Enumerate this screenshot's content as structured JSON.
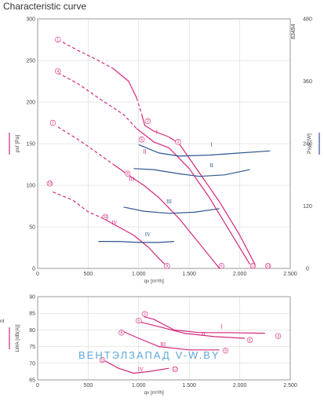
{
  "page": {
    "title": "Characteristic curve",
    "code": "83494",
    "watermark": {
      "part1": "ВЕНТЭЛ",
      "part2": "ЗАПАД",
      "part3": "V-W.BY",
      "color1": "#5fa8d8",
      "color2": "#5fa8d8",
      "color3": "#5fa8d8"
    },
    "cut_label": "nt"
  },
  "colors": {
    "pressure": "#d4287c",
    "power": "#2e5690",
    "grid": "#d0d0d0"
  },
  "chart_data": [
    {
      "type": "line",
      "name": "pressure_power",
      "xlabel": "qv [m³/h]",
      "ylabel": "psf [Pa]",
      "y2label": "Psys [W]",
      "xlim": [
        0,
        2500
      ],
      "ylim": [
        0,
        300
      ],
      "y2lim": [
        0,
        480
      ],
      "x_ticks": [
        0,
        500,
        1000,
        1500,
        2000,
        2500
      ],
      "x_tick_labels": [
        "0",
        "500",
        "1.000",
        "1.500",
        "2.000",
        "2.500"
      ],
      "y_ticks": [
        0,
        50,
        100,
        150,
        200,
        250,
        300
      ],
      "y2_ticks": [
        0,
        120,
        240,
        360,
        480
      ],
      "series": [
        {
          "axis": "y",
          "style": "dashed",
          "points": [
            [
              200,
              275
            ],
            [
              400,
              262
            ],
            [
              600,
              250
            ],
            [
              750,
              240
            ]
          ]
        },
        {
          "axis": "y",
          "style": "solid",
          "points": [
            [
              750,
              240
            ],
            [
              900,
              225
            ],
            [
              980,
              205
            ]
          ]
        },
        {
          "axis": "y",
          "style": "dashed",
          "points": [
            [
              980,
              205
            ],
            [
              1030,
              185
            ]
          ]
        },
        {
          "axis": "y",
          "style": "solid",
          "points": [
            [
              1030,
              185
            ],
            [
              1060,
              172
            ],
            [
              1150,
              165
            ],
            [
              1300,
              158
            ],
            [
              1400,
              150
            ],
            [
              1600,
              115
            ],
            [
              1800,
              80
            ],
            [
              2000,
              40
            ],
            [
              2150,
              5
            ]
          ]
        },
        {
          "axis": "y",
          "style": "dashed",
          "points": [
            [
              200,
              235
            ],
            [
              400,
              222
            ],
            [
              600,
              205
            ],
            [
              850,
              185
            ],
            [
              980,
              168
            ]
          ]
        },
        {
          "axis": "y",
          "style": "solid",
          "points": [
            [
              980,
              168
            ],
            [
              1150,
              152
            ],
            [
              1300,
              145
            ],
            [
              1500,
              120
            ],
            [
              1700,
              85
            ],
            [
              1900,
              45
            ],
            [
              2100,
              5
            ]
          ]
        },
        {
          "axis": "y",
          "style": "dashed",
          "points": [
            [
              200,
              170
            ],
            [
              400,
              155
            ],
            [
              600,
              138
            ],
            [
              750,
              125
            ]
          ]
        },
        {
          "axis": "y",
          "style": "solid",
          "points": [
            [
              750,
              125
            ],
            [
              900,
              112
            ],
            [
              1050,
              100
            ],
            [
              1200,
              85
            ],
            [
              1400,
              60
            ],
            [
              1600,
              30
            ],
            [
              1800,
              0
            ]
          ]
        },
        {
          "axis": "y",
          "style": "dashed",
          "points": [
            [
              150,
              92
            ],
            [
              350,
              82
            ],
            [
              500,
              68
            ],
            [
              650,
              60
            ]
          ]
        },
        {
          "axis": "y",
          "style": "solid",
          "points": [
            [
              650,
              60
            ],
            [
              800,
              50
            ],
            [
              950,
              40
            ],
            [
              1100,
              25
            ],
            [
              1200,
              12
            ],
            [
              1300,
              0
            ]
          ]
        },
        {
          "axis": "y2",
          "style": "solid",
          "points": [
            [
              1000,
              238
            ],
            [
              1200,
              222
            ],
            [
              1400,
              216
            ],
            [
              1700,
              218
            ],
            [
              2000,
              222
            ],
            [
              2300,
              226
            ]
          ]
        },
        {
          "axis": "y2",
          "style": "solid",
          "points": [
            [
              950,
              192
            ],
            [
              1150,
              190
            ],
            [
              1400,
              182
            ],
            [
              1600,
              177
            ],
            [
              1850,
              180
            ],
            [
              2100,
              190
            ]
          ]
        },
        {
          "axis": "y2",
          "style": "solid",
          "points": [
            [
              850,
              118
            ],
            [
              1050,
              110
            ],
            [
              1300,
              106
            ],
            [
              1550,
              108
            ],
            [
              1800,
              115
            ]
          ]
        },
        {
          "axis": "y2",
          "style": "solid",
          "points": [
            [
              600,
              52
            ],
            [
              800,
              52
            ],
            [
              1000,
              50
            ],
            [
              1200,
              50
            ],
            [
              1350,
              52
            ]
          ]
        }
      ],
      "roman_labels": [
        {
          "text": "I",
          "x": 1180,
          "y": 162,
          "color": "#d4287c"
        },
        {
          "text": "II",
          "x": 1060,
          "y": 138,
          "color": "#d4287c"
        },
        {
          "text": "III",
          "x": 930,
          "y": 105,
          "color": "#d4287c"
        },
        {
          "text": "IV",
          "x": 760,
          "y": 53,
          "color": "#d4287c"
        },
        {
          "text": "I",
          "x": 1720,
          "y": 235,
          "axis": "y2",
          "color": "#2e5690"
        },
        {
          "text": "II",
          "x": 1720,
          "y": 195,
          "axis": "y2",
          "color": "#2e5690"
        },
        {
          "text": "III",
          "x": 1300,
          "y": 125,
          "axis": "y2",
          "color": "#2e5690"
        },
        {
          "text": "IV",
          "x": 1090,
          "y": 62,
          "axis": "y2",
          "color": "#2e5690"
        }
      ],
      "markers": [
        {
          "text": "1",
          "x": 200,
          "y": 275
        },
        {
          "text": "4",
          "x": 200,
          "y": 237
        },
        {
          "text": "7",
          "x": 150,
          "y": 175
        },
        {
          "text": "10",
          "x": 120,
          "y": 102
        },
        {
          "text": "2",
          "x": 1090,
          "y": 177
        },
        {
          "text": "5",
          "x": 1030,
          "y": 155
        },
        {
          "text": "8",
          "x": 890,
          "y": 114
        },
        {
          "text": "11",
          "x": 670,
          "y": 62
        },
        {
          "text": "3",
          "x": 1390,
          "y": 152
        },
        {
          "text": "6",
          "x": 1820,
          "y": 3
        },
        {
          "text": "9",
          "x": 1280,
          "y": 3
        },
        {
          "text": "12",
          "x": 2130,
          "y": 3
        },
        {
          "text": "13",
          "x": 2280,
          "y": 3
        }
      ]
    },
    {
      "type": "line",
      "name": "sound",
      "xlabel": "qv [m³/h]",
      "ylabel": "LWA [dB(A)]",
      "xlim": [
        0,
        2500
      ],
      "ylim": [
        65,
        90
      ],
      "x_ticks": [
        0,
        500,
        1000,
        1500,
        2000,
        2500
      ],
      "x_tick_labels": [
        "0",
        "500",
        "1.000",
        "1.500",
        "2.000",
        "2.500"
      ],
      "y_ticks": [
        65,
        70,
        75,
        80,
        85,
        90
      ],
      "series": [
        {
          "style": "solid",
          "points": [
            [
              1050,
              84
            ],
            [
              1150,
              83.2
            ],
            [
              1350,
              80
            ],
            [
              1600,
              79.2
            ],
            [
              1900,
              79.2
            ],
            [
              2250,
              79
            ]
          ]
        },
        {
          "style": "solid",
          "points": [
            [
              1000,
              82.5
            ],
            [
              1200,
              81
            ],
            [
              1450,
              79
            ],
            [
              1750,
              78
            ],
            [
              2050,
              77.5
            ]
          ]
        },
        {
          "style": "solid",
          "points": [
            [
              850,
              79.5
            ],
            [
              1000,
              77.5
            ],
            [
              1200,
              75
            ],
            [
              1500,
              74
            ],
            [
              1800,
              74
            ]
          ]
        },
        {
          "style": "solid",
          "points": [
            [
              650,
              71
            ],
            [
              800,
              68.5
            ],
            [
              950,
              67
            ],
            [
              1100,
              67.5
            ],
            [
              1300,
              68.5
            ]
          ]
        }
      ],
      "roman_labels": [
        {
          "text": "I",
          "x": 1820,
          "y": 80.5,
          "color": "#d4287c"
        },
        {
          "text": "II",
          "x": 1640,
          "y": 78.2,
          "color": "#d4287c"
        },
        {
          "text": "III",
          "x": 1240,
          "y": 75.2,
          "color": "#d4287c"
        },
        {
          "text": "IV",
          "x": 1020,
          "y": 67.6,
          "color": "#d4287c"
        }
      ],
      "markers": [
        {
          "text": "2",
          "x": 1060,
          "y": 84.8
        },
        {
          "text": "5",
          "x": 1000,
          "y": 82.8
        },
        {
          "text": "8",
          "x": 830,
          "y": 79.2
        },
        {
          "text": "11",
          "x": 640,
          "y": 71
        },
        {
          "text": "3",
          "x": 2380,
          "y": 78.2
        },
        {
          "text": "6",
          "x": 2100,
          "y": 77
        },
        {
          "text": "9",
          "x": 1860,
          "y": 73.8
        },
        {
          "text": "12",
          "x": 1360,
          "y": 68.2
        }
      ]
    }
  ]
}
